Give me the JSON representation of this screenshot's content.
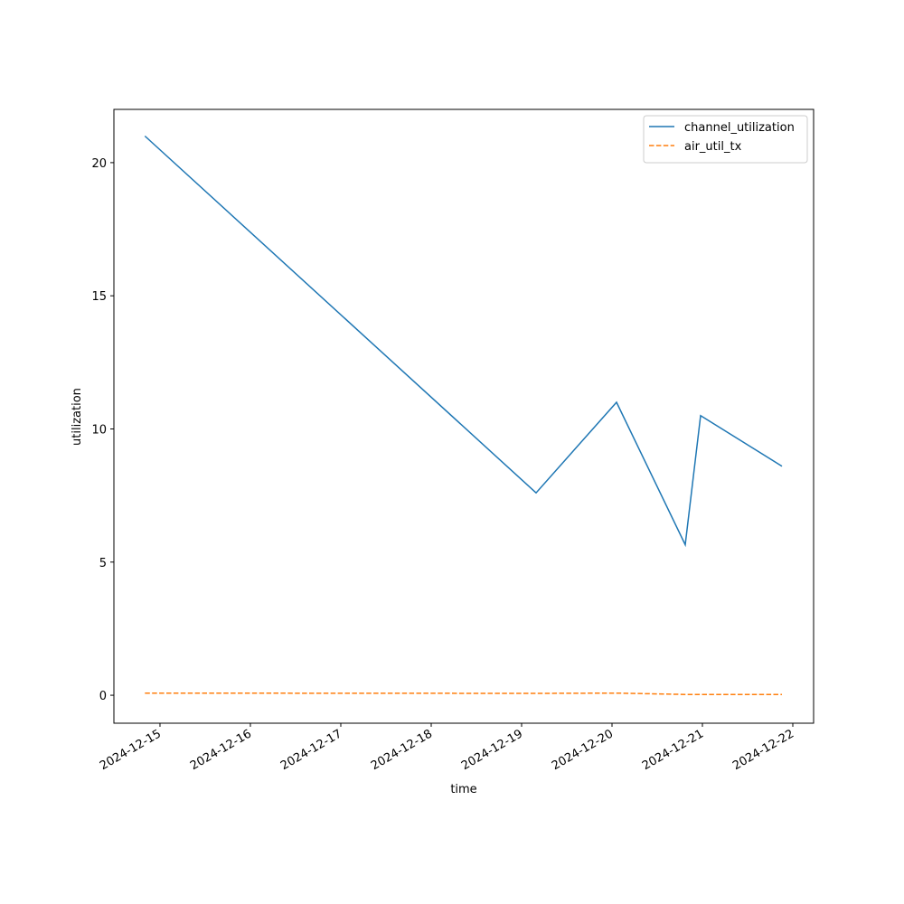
{
  "chart_data": {
    "type": "line",
    "xlabel": "time",
    "ylabel": "utilization",
    "x": [
      "2024-12-14T20:00",
      "2024-12-19T03:50",
      "2024-12-20T01:12",
      "2024-12-20T19:26",
      "2024-12-20T23:31",
      "2024-12-21T21:07"
    ],
    "series": [
      {
        "name": "channel_utilization",
        "color": "#1f77b4",
        "dash": "solid",
        "values": [
          21.0,
          7.6,
          11.0,
          5.65,
          10.5,
          8.6
        ]
      },
      {
        "name": "air_util_tx",
        "color": "#ff7f0e",
        "dash": "dashed",
        "values": [
          0.08,
          0.07,
          0.08,
          0.03,
          0.03,
          0.03
        ]
      }
    ],
    "xlim": [
      "2024-12-14T11:46",
      "2024-12-22T05:31"
    ],
    "xticks": [
      "2024-12-15",
      "2024-12-16",
      "2024-12-17",
      "2024-12-18",
      "2024-12-19",
      "2024-12-20",
      "2024-12-21",
      "2024-12-22"
    ],
    "ylim": [
      -1.05,
      22
    ],
    "yticks": [
      0,
      5,
      10,
      15,
      20
    ],
    "grid": false,
    "legend": "upper-right"
  }
}
